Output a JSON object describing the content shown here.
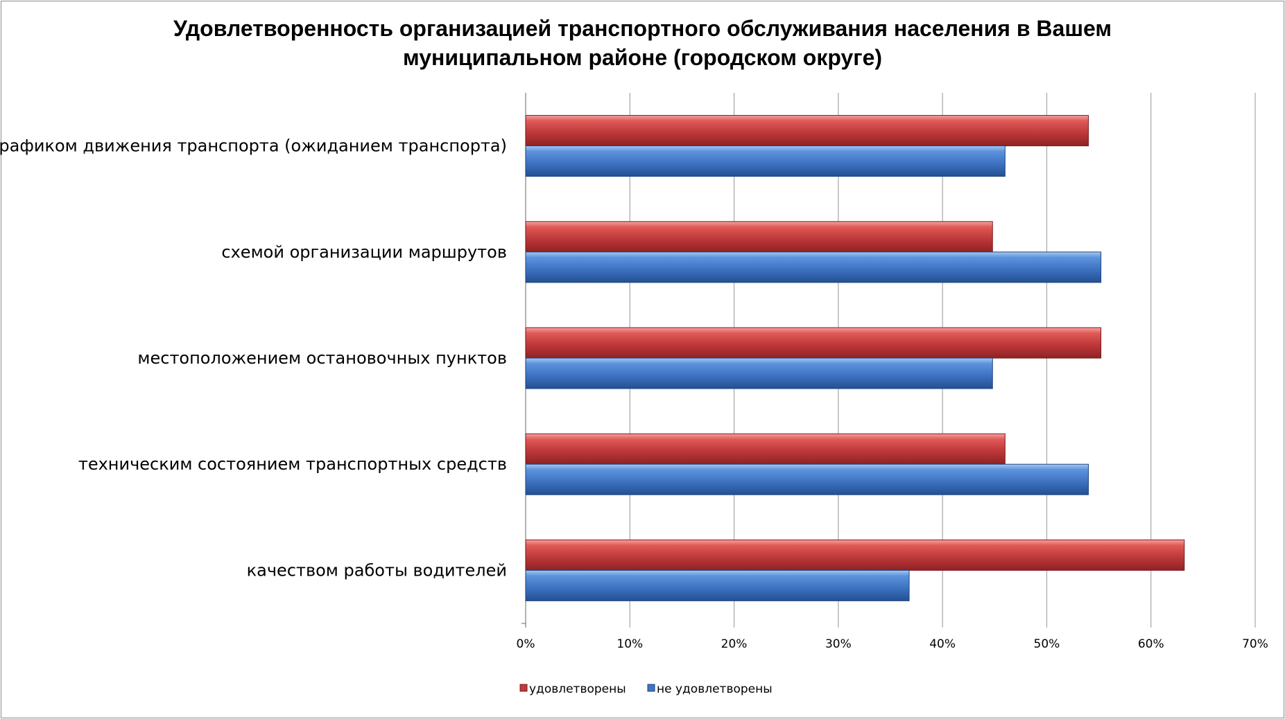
{
  "chart_data": {
    "type": "bar",
    "orientation": "horizontal",
    "title": "Удовлетворенность организацией транспортного обслуживания населения в Вашем муниципальном районе (городском округе)",
    "title_lines": [
      "Удовлетворенность организацией транспортного обслуживания населения в Вашем",
      "муниципальном районе (городском округе)"
    ],
    "categories": [
      "графиком движения транспорта (ожиданием транспорта)",
      "схемой организации маршрутов",
      "местоположением остановочных пунктов",
      "техническим состоянием транспортных средств",
      "качеством работы водителей"
    ],
    "series": [
      {
        "name": "удовлетворены",
        "color": "#c0393b",
        "values": [
          54,
          44.8,
          55.2,
          46,
          63.2
        ]
      },
      {
        "name": "не удовлетворены",
        "color": "#3f74c4",
        "values": [
          46,
          55.2,
          44.8,
          54,
          36.8
        ]
      }
    ],
    "xlim": [
      0,
      70
    ],
    "x_ticks": [
      0,
      10,
      20,
      30,
      40,
      50,
      60,
      70
    ],
    "x_tick_labels": [
      "0%",
      "10%",
      "20%",
      "30%",
      "40%",
      "50%",
      "60%",
      "70%"
    ],
    "xlabel": "",
    "ylabel": "",
    "grid": "vertical",
    "legend_position": "bottom"
  }
}
